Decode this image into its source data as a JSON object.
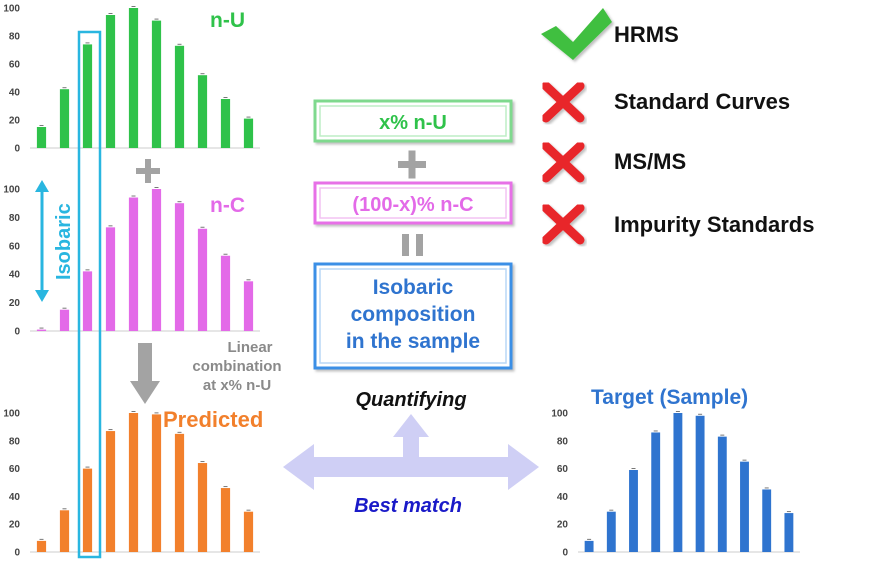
{
  "chart_data": [
    {
      "type": "bar",
      "series": [
        {
          "name": "n-U",
          "values": [
            15,
            42,
            74,
            95,
            100,
            91,
            73,
            52,
            35,
            21
          ]
        }
      ],
      "ylim": [
        0,
        100
      ],
      "yticks": [
        "0",
        "20",
        "40",
        "60",
        "80",
        "100"
      ],
      "color": "#2fc24a"
    },
    {
      "type": "bar",
      "series": [
        {
          "name": "n-C",
          "values": [
            1,
            15,
            42,
            73,
            94,
            100,
            90,
            72,
            53,
            35
          ]
        }
      ],
      "ylim": [
        0,
        100
      ],
      "yticks": [
        "0",
        "20",
        "40",
        "60",
        "80",
        "100"
      ],
      "color": "#e36ae8"
    },
    {
      "type": "bar",
      "series": [
        {
          "name": "Predicted",
          "values": [
            8,
            30,
            60,
            87,
            100,
            99,
            85,
            64,
            46,
            29
          ]
        }
      ],
      "ylim": [
        0,
        100
      ],
      "yticks": [
        "0",
        "20",
        "40",
        "60",
        "80",
        "100"
      ],
      "color": "#f2802c"
    },
    {
      "type": "bar",
      "series": [
        {
          "name": "Target (Sample)",
          "values": [
            8,
            29,
            59,
            86,
            100,
            98,
            83,
            65,
            45,
            28
          ]
        }
      ],
      "ylim": [
        0,
        100
      ],
      "yticks": [
        "0",
        "20",
        "40",
        "60",
        "80",
        "100"
      ],
      "color": "#2f74cf"
    }
  ],
  "labels": {
    "isobaric": "Isobaric",
    "linear_line1": "Linear",
    "linear_line2": "combination",
    "linear_line3": "at x% n-U",
    "quantifying": "Quantifying",
    "best_match": "Best match"
  },
  "boxes": {
    "nu": "x% n-U",
    "nc": "(100-x)% n-C",
    "iso_line1": "Isobaric",
    "iso_line2": "composition",
    "iso_line3": "in the sample"
  },
  "checklist": [
    {
      "label": "HRMS",
      "status": "check"
    },
    {
      "label": "Standard Curves",
      "status": "cross"
    },
    {
      "label": "MS/MS",
      "status": "cross"
    },
    {
      "label": "Impurity Standards",
      "status": "cross"
    }
  ],
  "colors": {
    "highlight": "#29b6e0",
    "arrow_gray": "#a3a3a3",
    "arrow_lavender": "#cfcff5",
    "green_box": "#7fd98e",
    "pink_box": "#e76fe7",
    "blue_box": "#3b8fe6",
    "blue_text": "#2f74cf",
    "check_green": "#3fbf3f",
    "cross_red": "#e8262a"
  }
}
